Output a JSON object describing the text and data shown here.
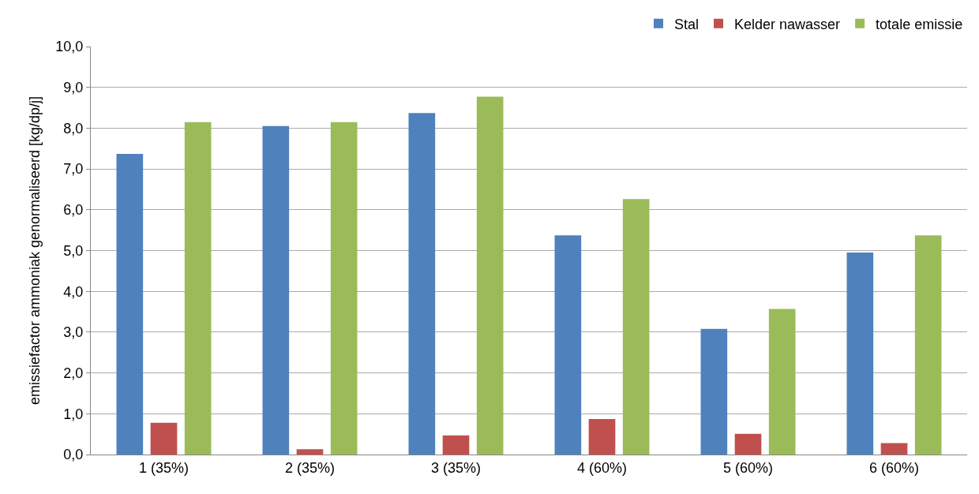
{
  "chart_data": {
    "type": "bar",
    "ylabel": "emissiefactor ammoniak genormaliseerd [kg/dp/j]",
    "categories": [
      "1 (35%)",
      "2 (35%)",
      "3 (35%)",
      "4 (60%)",
      "5 (60%)",
      "6 (60%)"
    ],
    "series": [
      {
        "name": "Stal",
        "color": "#4f81bd",
        "values": [
          7.37,
          8.05,
          8.37,
          5.37,
          3.08,
          4.95
        ]
      },
      {
        "name": "Kelder nawasser",
        "color": "#c0504d",
        "values": [
          0.78,
          0.13,
          0.47,
          0.87,
          0.51,
          0.28
        ]
      },
      {
        "name": "totale emissie",
        "color": "#9bbb59",
        "values": [
          8.15,
          8.15,
          8.77,
          6.26,
          3.57,
          5.37
        ]
      }
    ],
    "ylim": [
      0,
      10
    ],
    "yticks": [
      {
        "value": 0,
        "label": "0,0"
      },
      {
        "value": 1,
        "label": "1,0"
      },
      {
        "value": 2,
        "label": "2,0"
      },
      {
        "value": 3,
        "label": "3,0"
      },
      {
        "value": 4,
        "label": "4,0"
      },
      {
        "value": 5,
        "label": "5,0"
      },
      {
        "value": 6,
        "label": "6,0"
      },
      {
        "value": 7,
        "label": "7,0"
      },
      {
        "value": 8,
        "label": "8,0"
      },
      {
        "value": 9,
        "label": "9,0"
      },
      {
        "value": 10,
        "label": "10,0"
      }
    ],
    "grid": "y",
    "legend": "top right"
  }
}
